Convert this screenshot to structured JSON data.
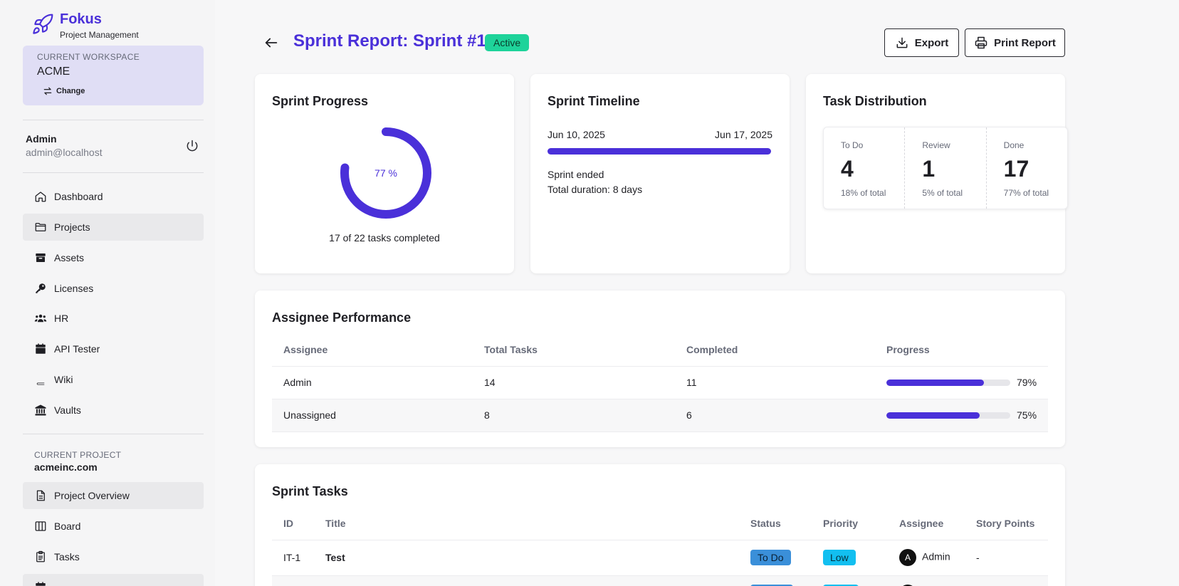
{
  "app": {
    "name": "Fokus",
    "subtitle": "Project Management"
  },
  "workspace": {
    "label": "CURRENT WORKSPACE",
    "name": "ACME",
    "change_label": "Change"
  },
  "user": {
    "name": "Admin",
    "email": "admin@localhost"
  },
  "nav": {
    "items": [
      {
        "label": "Dashboard",
        "icon": "home-icon"
      },
      {
        "label": "Projects",
        "icon": "folder-icon"
      },
      {
        "label": "Assets",
        "icon": "box-icon"
      },
      {
        "label": "Licenses",
        "icon": "key-icon"
      },
      {
        "label": "HR",
        "icon": "users-icon"
      },
      {
        "label": "API Tester",
        "icon": "calendar-icon"
      },
      {
        "label": "Wiki",
        "icon": "book-icon"
      },
      {
        "label": "Vaults",
        "icon": "bank-icon"
      }
    ]
  },
  "project": {
    "label": "CURRENT PROJECT",
    "name": "acmeinc.com",
    "items": [
      {
        "label": "Project Overview",
        "icon": "file-icon"
      },
      {
        "label": "Board",
        "icon": "columns-icon"
      },
      {
        "label": "Tasks",
        "icon": "clipboard-icon"
      }
    ]
  },
  "header": {
    "title": "Sprint Report: Sprint #1",
    "status": "Active",
    "export_label": "Export",
    "print_label": "Print Report"
  },
  "progress": {
    "title": "Sprint Progress",
    "percent": 77,
    "percent_label": "77 %",
    "caption": "17 of 22 tasks completed"
  },
  "timeline": {
    "title": "Sprint Timeline",
    "start": "Jun 10, 2025",
    "end": "Jun 17, 2025",
    "status": "Sprint ended",
    "duration": "Total duration: 8 days"
  },
  "distribution": {
    "title": "Task Distribution",
    "cells": [
      {
        "label": "To Do",
        "value": "4",
        "pct": "18% of total"
      },
      {
        "label": "Review",
        "value": "1",
        "pct": "5% of total"
      },
      {
        "label": "Done",
        "value": "17",
        "pct": "77% of total"
      }
    ]
  },
  "performance": {
    "title": "Assignee Performance",
    "columns": [
      "Assignee",
      "Total Tasks",
      "Completed",
      "Progress"
    ],
    "rows": [
      {
        "assignee": "Admin",
        "total": "14",
        "completed": "11",
        "progress": 79,
        "progress_label": "79%"
      },
      {
        "assignee": "Unassigned",
        "total": "8",
        "completed": "6",
        "progress": 75,
        "progress_label": "75%"
      }
    ]
  },
  "tasks": {
    "title": "Sprint Tasks",
    "columns": [
      "ID",
      "Title",
      "Status",
      "Priority",
      "Assignee",
      "Story Points"
    ],
    "rows": [
      {
        "id": "IT-1",
        "title": "Test",
        "status": "To Do",
        "priority": "Low",
        "avatar": "A",
        "assignee": "Admin",
        "points": "-"
      }
    ]
  },
  "colors": {
    "accent": "#4a30d9",
    "active_badge": "#1ed39a",
    "status_todo": "#3a8fd9",
    "priority_low": "#12bff0"
  }
}
